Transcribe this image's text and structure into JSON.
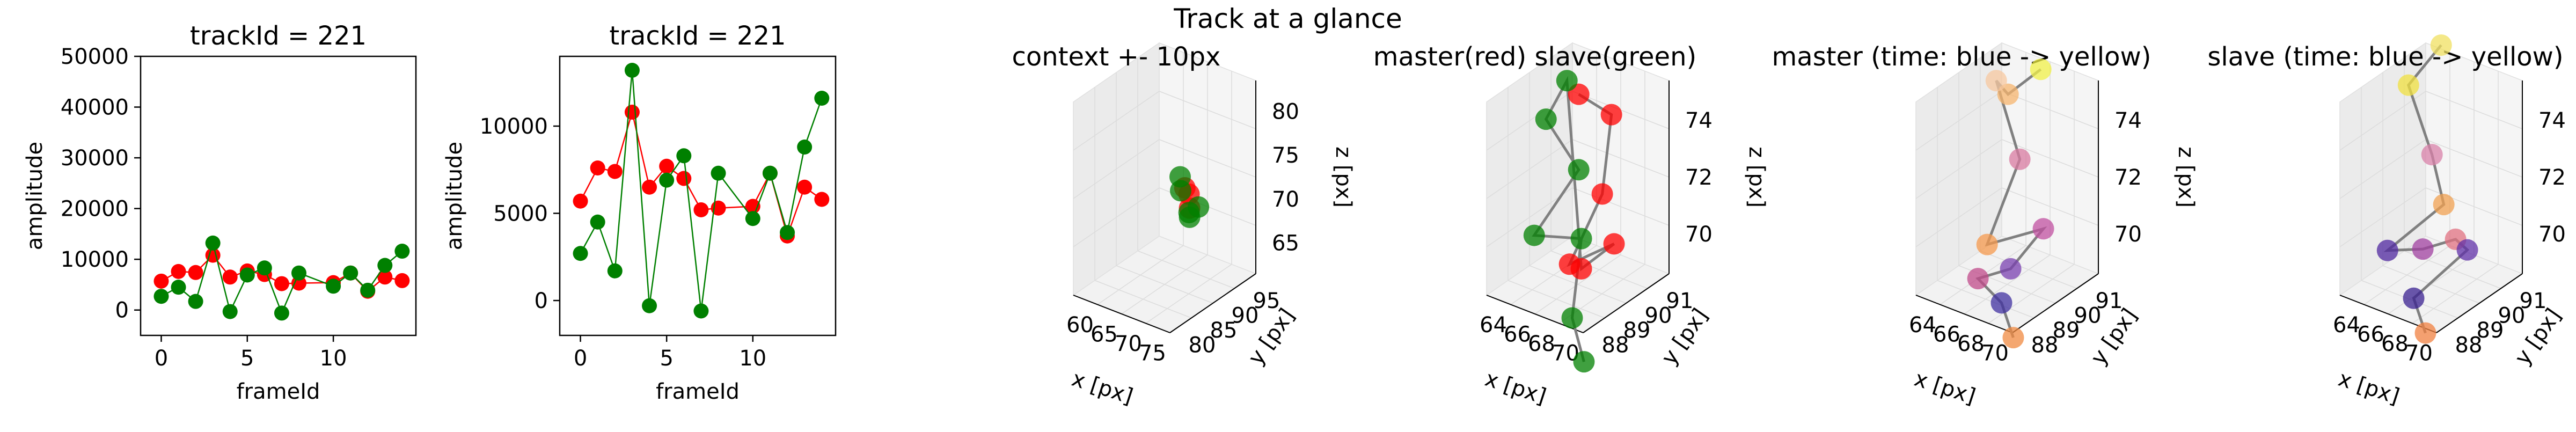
{
  "figure": {
    "title": "Track at a glance"
  },
  "chart_data": [
    {
      "type": "line",
      "title": "trackId = 221",
      "xlabel": "frameId",
      "ylabel": "amplitude",
      "xlim": [
        -1.2,
        14.8
      ],
      "ylim": [
        -5000,
        50000
      ],
      "xticks": [
        0,
        5,
        10
      ],
      "yticks": [
        0,
        10000,
        20000,
        30000,
        40000,
        50000
      ],
      "grid": false,
      "series": [
        {
          "color": "#ff0000",
          "x": [
            0,
            1,
            2,
            3,
            4,
            5,
            6,
            7,
            8,
            10,
            11,
            12,
            13,
            14
          ],
          "values": [
            5700,
            7600,
            7400,
            10800,
            6500,
            7700,
            7000,
            5200,
            5300,
            5400,
            7300,
            3700,
            6500,
            5800
          ]
        },
        {
          "color": "#008000",
          "x": [
            0,
            1,
            2,
            3,
            4,
            5,
            6,
            7,
            8,
            10,
            11,
            12,
            13,
            14
          ],
          "values": [
            2700,
            4500,
            1700,
            13200,
            -300,
            6900,
            8300,
            -600,
            7300,
            4700,
            7300,
            3900,
            8800,
            11600
          ]
        }
      ]
    },
    {
      "type": "line",
      "title": "trackId = 221",
      "xlabel": "frameId",
      "ylabel": "amplitude",
      "xlim": [
        -1.2,
        14.8
      ],
      "ylim": [
        -2000,
        14000
      ],
      "xticks": [
        0,
        5,
        10
      ],
      "yticks": [
        0,
        5000,
        10000
      ],
      "grid": false,
      "series": [
        {
          "color": "#ff0000",
          "x": [
            0,
            1,
            2,
            3,
            4,
            5,
            6,
            7,
            8,
            10,
            11,
            12,
            13,
            14
          ],
          "values": [
            5700,
            7600,
            7400,
            10800,
            6500,
            7700,
            7000,
            5200,
            5300,
            5400,
            7300,
            3700,
            6500,
            5800
          ]
        },
        {
          "color": "#008000",
          "x": [
            0,
            1,
            2,
            3,
            4,
            5,
            6,
            7,
            8,
            10,
            11,
            12,
            13,
            14
          ],
          "values": [
            2700,
            4500,
            1700,
            13200,
            -300,
            6900,
            8300,
            -600,
            7300,
            4700,
            7300,
            3900,
            8800,
            11600
          ]
        }
      ]
    },
    {
      "type": "scatter",
      "title": "context +- 10px",
      "xlabel": "x [px]",
      "ylabel": "y [px]",
      "zlabel": "z [px]",
      "xticks": [
        "60",
        "65",
        "70",
        "75"
      ],
      "yticks": [
        "80",
        "85",
        "90",
        "95"
      ],
      "zticks": [
        "65",
        "70",
        "75",
        "80"
      ],
      "points": [
        {
          "color": "#ff0000",
          "x": 70,
          "y": 89,
          "z": 72
        },
        {
          "color": "#ff0000",
          "x": 70,
          "y": 90,
          "z": 71
        },
        {
          "color": "#ff0000",
          "x": 71,
          "y": 89,
          "z": 70
        },
        {
          "color": "#008000",
          "x": 69,
          "y": 89,
          "z": 73
        },
        {
          "color": "#008000",
          "x": 70,
          "y": 88,
          "z": 72
        },
        {
          "color": "#008000",
          "x": 70,
          "y": 90,
          "z": 69
        },
        {
          "color": "#008000",
          "x": 71,
          "y": 89,
          "z": 69
        },
        {
          "color": "#008000",
          "x": 72,
          "y": 90,
          "z": 70
        }
      ]
    },
    {
      "type": "scatter",
      "title": "master(red) slave(green)",
      "xlabel": "x [px]",
      "ylabel": "y [px]",
      "zlabel": "z [px]",
      "xticks": [
        "64",
        "66",
        "68",
        "70"
      ],
      "yticks": [
        "88",
        "89",
        "90",
        "91"
      ],
      "zticks": [
        "70",
        "72",
        "74"
      ],
      "points": [
        {
          "color": "#ff0000",
          "x": 66,
          "y": 90,
          "z": 74.5
        },
        {
          "color": "#ff0000",
          "x": 67,
          "y": 91,
          "z": 73.5
        },
        {
          "color": "#ff0000",
          "x": 68,
          "y": 90,
          "z": 71.5
        },
        {
          "color": "#ff0000",
          "x": 67,
          "y": 89,
          "z": 69.5
        },
        {
          "color": "#ff0000",
          "x": 69,
          "y": 90,
          "z": 70
        },
        {
          "color": "#ff0000",
          "x": 68,
          "y": 89,
          "z": 69.5
        },
        {
          "color": "#008000",
          "x": 65,
          "y": 90,
          "z": 74.8
        },
        {
          "color": "#008000",
          "x": 65,
          "y": 89,
          "z": 74
        },
        {
          "color": "#008000",
          "x": 66,
          "y": 90,
          "z": 72
        },
        {
          "color": "#008000",
          "x": 64,
          "y": 89,
          "z": 70
        },
        {
          "color": "#008000",
          "x": 68,
          "y": 89,
          "z": 70.5
        },
        {
          "color": "#008000",
          "x": 69,
          "y": 88,
          "z": 68.5
        },
        {
          "color": "#008000",
          "x": 70,
          "y": 88,
          "z": 67.2
        }
      ]
    },
    {
      "type": "scatter",
      "title": "master (time: blue -> yellow)",
      "xlabel": "x [px]",
      "ylabel": "y [px]",
      "zlabel": "z [px]",
      "xticks": [
        "64",
        "66",
        "68",
        "70"
      ],
      "yticks": [
        "88",
        "89",
        "90",
        "91"
      ],
      "zticks": [
        "70",
        "72",
        "74"
      ],
      "points": [
        {
          "color": "#f0f048",
          "x": 67,
          "y": 91,
          "z": 75
        },
        {
          "color": "#f5b46e",
          "x": 66,
          "y": 90,
          "z": 74.5
        },
        {
          "color": "#f7c8a0",
          "x": 65,
          "y": 90,
          "z": 74.8
        },
        {
          "color": "#d87aa0",
          "x": 67,
          "y": 90,
          "z": 72.5
        },
        {
          "color": "#f59a4e",
          "x": 66,
          "y": 89,
          "z": 70
        },
        {
          "color": "#c050a0",
          "x": 69,
          "y": 90,
          "z": 70.5
        },
        {
          "color": "#7a40b0",
          "x": 68,
          "y": 89,
          "z": 69.5
        },
        {
          "color": "#c04a8a",
          "x": 67,
          "y": 88,
          "z": 69.5
        },
        {
          "color": "#4030a0",
          "x": 69,
          "y": 88,
          "z": 69
        },
        {
          "color": "#f08a40",
          "x": 70,
          "y": 88,
          "z": 68
        }
      ]
    },
    {
      "type": "scatter",
      "title": "slave (time: blue -> yellow)",
      "xlabel": "x [px]",
      "ylabel": "y [px]",
      "zlabel": "z [px]",
      "xticks": [
        "64",
        "66",
        "68",
        "70"
      ],
      "yticks": [
        "88",
        "89",
        "90",
        "91"
      ],
      "zticks": [
        "70",
        "72",
        "74"
      ],
      "points": [
        {
          "color": "#f0e060",
          "x": 65,
          "y": 91,
          "z": 75.5
        },
        {
          "color": "#f0e040",
          "x": 64,
          "y": 90,
          "z": 74.5
        },
        {
          "color": "#d880a8",
          "x": 66,
          "y": 90,
          "z": 72.5
        },
        {
          "color": "#f0a050",
          "x": 67,
          "y": 90,
          "z": 71
        },
        {
          "color": "#5028a0",
          "x": 64,
          "y": 89,
          "z": 69.5
        },
        {
          "color": "#a040a0",
          "x": 67,
          "y": 89,
          "z": 70
        },
        {
          "color": "#e07080",
          "x": 68,
          "y": 90,
          "z": 70
        },
        {
          "color": "#6030a8",
          "x": 69,
          "y": 90,
          "z": 69.8
        },
        {
          "color": "#3a2090",
          "x": 68,
          "y": 88,
          "z": 69
        },
        {
          "color": "#f08040",
          "x": 69,
          "y": 88,
          "z": 68
        }
      ]
    }
  ]
}
